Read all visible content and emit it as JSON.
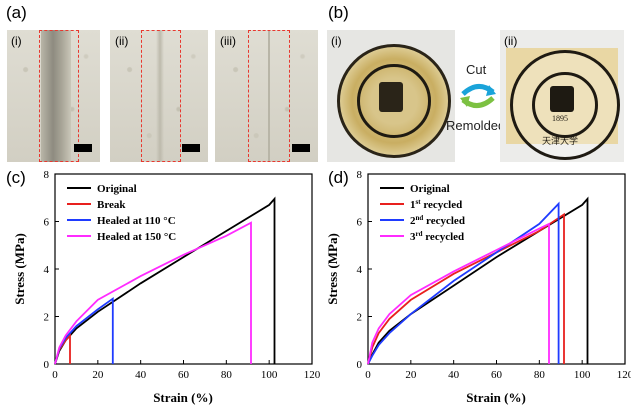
{
  "panels": {
    "a": {
      "label": "(a)",
      "subs": [
        "(i)",
        "(ii)",
        "(iii)"
      ]
    },
    "b": {
      "label": "(b)",
      "subs": [
        "(i)",
        "(ii)"
      ],
      "cut_label": "Cut",
      "remolded_label": "Remolded",
      "seal_text_top": "TIANJIN UNIVERSITY (PEIYANG UNIVERSITY)",
      "seal_year": "1895",
      "seal_bottom": "天津大学"
    },
    "c": {
      "label": "(c)"
    },
    "d": {
      "label": "(d)"
    }
  },
  "colors": {
    "black": "#000000",
    "red": "#e8201e",
    "blue": "#1f3bff",
    "magenta": "#ff2bff",
    "dash": "#e8382f"
  },
  "chart_data": [
    {
      "type": "line",
      "panel": "(c)",
      "xlabel": "Strain (%)",
      "ylabel": "Stress (MPa)",
      "xlim": [
        0,
        120
      ],
      "ylim": [
        0,
        8
      ],
      "xticks": [
        "0",
        "20",
        "40",
        "60",
        "80",
        "100",
        "120"
      ],
      "yticks": [
        "0",
        "2",
        "4",
        "6",
        "8"
      ],
      "legend_position": "top-left",
      "series": [
        {
          "name": "Original",
          "color": "#000000",
          "points": [
            [
              0,
              0
            ],
            [
              2,
              0.55
            ],
            [
              5,
              1.0
            ],
            [
              10,
              1.5
            ],
            [
              20,
              2.2
            ],
            [
              40,
              3.4
            ],
            [
              60,
              4.5
            ],
            [
              80,
              5.6
            ],
            [
              100,
              6.7
            ],
            [
              102.5,
              6.95
            ],
            [
              102.5,
              0
            ]
          ]
        },
        {
          "name": "Break",
          "color": "#e8201e",
          "points": [
            [
              0,
              0
            ],
            [
              2,
              0.6
            ],
            [
              5,
              1.0
            ],
            [
              7,
              1.2
            ],
            [
              7,
              0
            ]
          ]
        },
        {
          "name": "Healed at 110 °C",
          "color": "#1f3bff",
          "points": [
            [
              0,
              0
            ],
            [
              2,
              0.65
            ],
            [
              5,
              1.1
            ],
            [
              10,
              1.6
            ],
            [
              20,
              2.3
            ],
            [
              27,
              2.75
            ],
            [
              27,
              0
            ]
          ]
        },
        {
          "name": "Healed at 150 °C",
          "color": "#ff2bff",
          "points": [
            [
              0,
              0
            ],
            [
              2,
              0.7
            ],
            [
              5,
              1.2
            ],
            [
              10,
              1.8
            ],
            [
              20,
              2.7
            ],
            [
              40,
              3.7
            ],
            [
              60,
              4.6
            ],
            [
              80,
              5.4
            ],
            [
              91.5,
              5.95
            ],
            [
              91.5,
              0
            ]
          ]
        }
      ]
    },
    {
      "type": "line",
      "panel": "(d)",
      "xlabel": "Strain (%)",
      "ylabel": "Stress (MPa)",
      "xlim": [
        0,
        120
      ],
      "ylim": [
        0,
        8
      ],
      "xticks": [
        "0",
        "20",
        "40",
        "60",
        "80",
        "100",
        "120"
      ],
      "yticks": [
        "0",
        "2",
        "4",
        "6",
        "8"
      ],
      "legend_position": "top-left",
      "series": [
        {
          "name": "Original",
          "color": "#000000",
          "points": [
            [
              0,
              0
            ],
            [
              2,
              0.4
            ],
            [
              5,
              0.9
            ],
            [
              10,
              1.4
            ],
            [
              20,
              2.1
            ],
            [
              40,
              3.3
            ],
            [
              60,
              4.5
            ],
            [
              80,
              5.6
            ],
            [
              100,
              6.7
            ],
            [
              102.5,
              6.95
            ],
            [
              102.5,
              0
            ]
          ]
        },
        {
          "name": "1st recycled",
          "sup": "st",
          "base": "1",
          "tail": " recycled",
          "color": "#e8201e",
          "points": [
            [
              0,
              0
            ],
            [
              2,
              0.7
            ],
            [
              5,
              1.3
            ],
            [
              10,
              1.9
            ],
            [
              20,
              2.7
            ],
            [
              40,
              3.8
            ],
            [
              60,
              4.7
            ],
            [
              80,
              5.6
            ],
            [
              91.5,
              6.3
            ],
            [
              91.5,
              0
            ]
          ]
        },
        {
          "name": "2nd recycled",
          "sup": "nd",
          "base": "2",
          "tail": " recycled",
          "color": "#1f3bff",
          "points": [
            [
              0,
              0
            ],
            [
              2,
              0.35
            ],
            [
              5,
              0.8
            ],
            [
              10,
              1.3
            ],
            [
              20,
              2.1
            ],
            [
              40,
              3.5
            ],
            [
              60,
              4.7
            ],
            [
              80,
              5.9
            ],
            [
              89,
              6.75
            ],
            [
              89,
              0
            ]
          ]
        },
        {
          "name": "3rd recycled",
          "sup": "rd",
          "base": "3",
          "tail": " recycled",
          "color": "#ff2bff",
          "points": [
            [
              0,
              0
            ],
            [
              2,
              0.9
            ],
            [
              5,
              1.5
            ],
            [
              10,
              2.1
            ],
            [
              20,
              2.9
            ],
            [
              40,
              3.9
            ],
            [
              60,
              4.8
            ],
            [
              80,
              5.7
            ],
            [
              84.5,
              5.9
            ],
            [
              84.5,
              0
            ]
          ]
        }
      ]
    }
  ]
}
